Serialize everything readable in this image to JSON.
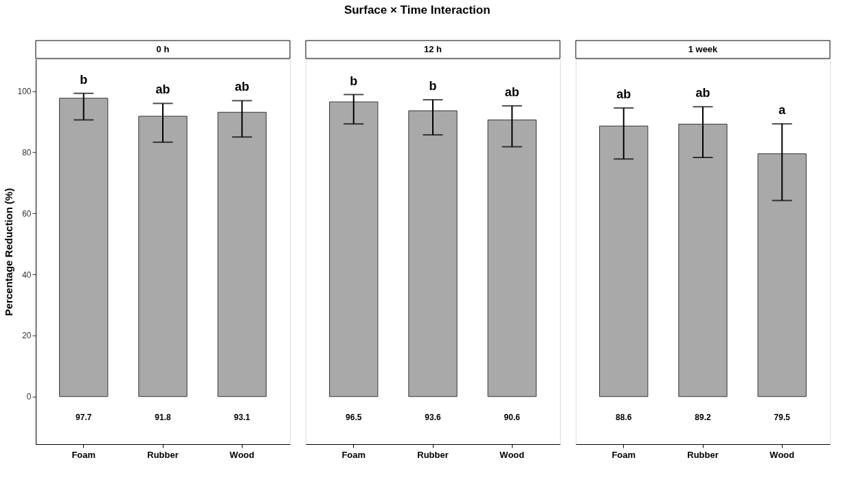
{
  "chart_data": [
    {
      "type": "bar",
      "title": "0 h",
      "ylabel": "Percentage Reduction (%)",
      "categories": [
        "Foam",
        "Rubber",
        "Wood"
      ],
      "values": [
        97.7,
        91.8,
        93.1
      ],
      "color": "#a9a9a9",
      "errors": [
        [
          90.6,
          99.3
        ],
        [
          83.3,
          96.0
        ],
        [
          85.0,
          96.9
        ]
      ],
      "data_labels": true,
      "ylim": [
        -15.6,
        110.5
      ],
      "yticks": [
        0,
        20,
        40,
        60,
        80,
        100
      ],
      "grid": false,
      "annotations": [
        "Surface × Time Interaction",
        "b",
        "ab",
        "ab"
      ]
    },
    {
      "type": "bar",
      "title": "12 h",
      "categories": [
        "Foam",
        "Rubber",
        "Wood"
      ],
      "values": [
        96.5,
        93.6,
        90.6
      ],
      "color": "#a9a9a9",
      "errors": [
        [
          89.3,
          98.9
        ],
        [
          85.7,
          97.2
        ],
        [
          81.8,
          95.2
        ]
      ],
      "data_labels": true,
      "ylim": [
        -15.6,
        110.5
      ],
      "tick_labels": "x",
      "grid": false,
      "annotations": [
        "b",
        "b",
        "ab"
      ]
    },
    {
      "type": "bar",
      "title": "1 week",
      "categories": [
        "Foam",
        "Rubber",
        "Wood"
      ],
      "values": [
        88.6,
        89.2,
        79.5
      ],
      "color": "#a9a9a9",
      "errors": [
        [
          77.8,
          94.5
        ],
        [
          78.3,
          94.9
        ],
        [
          64.2,
          89.3
        ]
      ],
      "data_labels": true,
      "ylim": [
        -15.6,
        110.5
      ],
      "tick_labels": "x",
      "grid": false,
      "annotations": [
        "ab",
        "ab",
        "a"
      ]
    }
  ]
}
